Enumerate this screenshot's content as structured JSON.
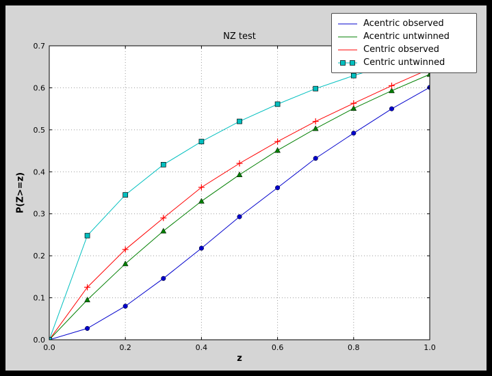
{
  "figure": {
    "outer_background": "#000000",
    "figure_background": "#d5d5d5",
    "axes_background": "#ffffff",
    "grid_color": "#999999",
    "spine_color": "#000000"
  },
  "chart_data": {
    "type": "line",
    "title": "NZ test",
    "xlabel": "z",
    "ylabel": "P(Z>=z)",
    "xlim": [
      0.0,
      1.0
    ],
    "ylim": [
      0.0,
      0.7
    ],
    "xticks": [
      0.0,
      0.2,
      0.4,
      0.6,
      0.8,
      1.0
    ],
    "yticks": [
      0.0,
      0.1,
      0.2,
      0.3,
      0.4,
      0.5,
      0.6,
      0.7
    ],
    "grid": true,
    "grid_style": "dotted",
    "legend_position": "upper right",
    "x": [
      0.0,
      0.1,
      0.2,
      0.3,
      0.4,
      0.5,
      0.6,
      0.7,
      0.8,
      0.9,
      1.0
    ],
    "series": [
      {
        "name": "Acentric observed",
        "color": "#0000cc",
        "marker": "circle",
        "legend_points": 0,
        "values": [
          0.0,
          0.027,
          0.08,
          0.146,
          0.218,
          0.293,
          0.362,
          0.432,
          0.492,
          0.55,
          0.601
        ]
      },
      {
        "name": "Acentric untwinned",
        "color": "#007f00",
        "marker": "triangle",
        "legend_points": 0,
        "values": [
          0.0,
          0.095,
          0.181,
          0.259,
          0.33,
          0.393,
          0.451,
          0.503,
          0.551,
          0.593,
          0.632
        ]
      },
      {
        "name": "Centric observed",
        "color": "#ff0000",
        "marker": "plus",
        "legend_points": 0,
        "values": [
          0.0,
          0.125,
          0.215,
          0.29,
          0.363,
          0.42,
          0.472,
          0.52,
          0.563,
          0.605,
          0.645
        ]
      },
      {
        "name": "Centric untwinned",
        "color": "#00bfbf",
        "marker": "square",
        "legend_points": 2,
        "values": [
          0.0,
          0.248,
          0.345,
          0.417,
          0.472,
          0.52,
          0.561,
          0.598,
          0.629,
          0.657,
          0.683
        ]
      }
    ]
  }
}
